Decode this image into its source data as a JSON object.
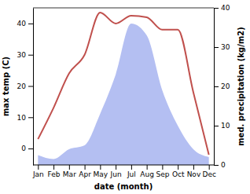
{
  "chart_data": {
    "type": "line",
    "categories": [
      "Jan",
      "Feb",
      "Mar",
      "Apr",
      "May",
      "Jun",
      "Jul",
      "Aug",
      "Sep",
      "Oct",
      "Nov",
      "Dec"
    ],
    "series": [
      {
        "type": "area",
        "axis": "y2",
        "color": "#b4bff2",
        "values": [
          2.5,
          1.5,
          4,
          5,
          13,
          23,
          36,
          33,
          19,
          10,
          4,
          2
        ]
      },
      {
        "type": "line",
        "color": "#c0504d",
        "values": [
          3,
          13,
          24,
          30,
          43.5,
          40,
          42.5,
          42,
          38,
          38,
          18,
          -2
        ]
      }
    ],
    "x_label": "date (month)",
    "y_label": "max temp (C)",
    "y2_label": "med. precipitation (kg/m2)",
    "ylim": [
      -5.25,
      45
    ],
    "yticks": [
      0,
      10,
      20,
      30,
      40
    ],
    "y2lim": [
      0,
      40
    ],
    "y2ticks": [
      0,
      10,
      20,
      30,
      40
    ]
  }
}
